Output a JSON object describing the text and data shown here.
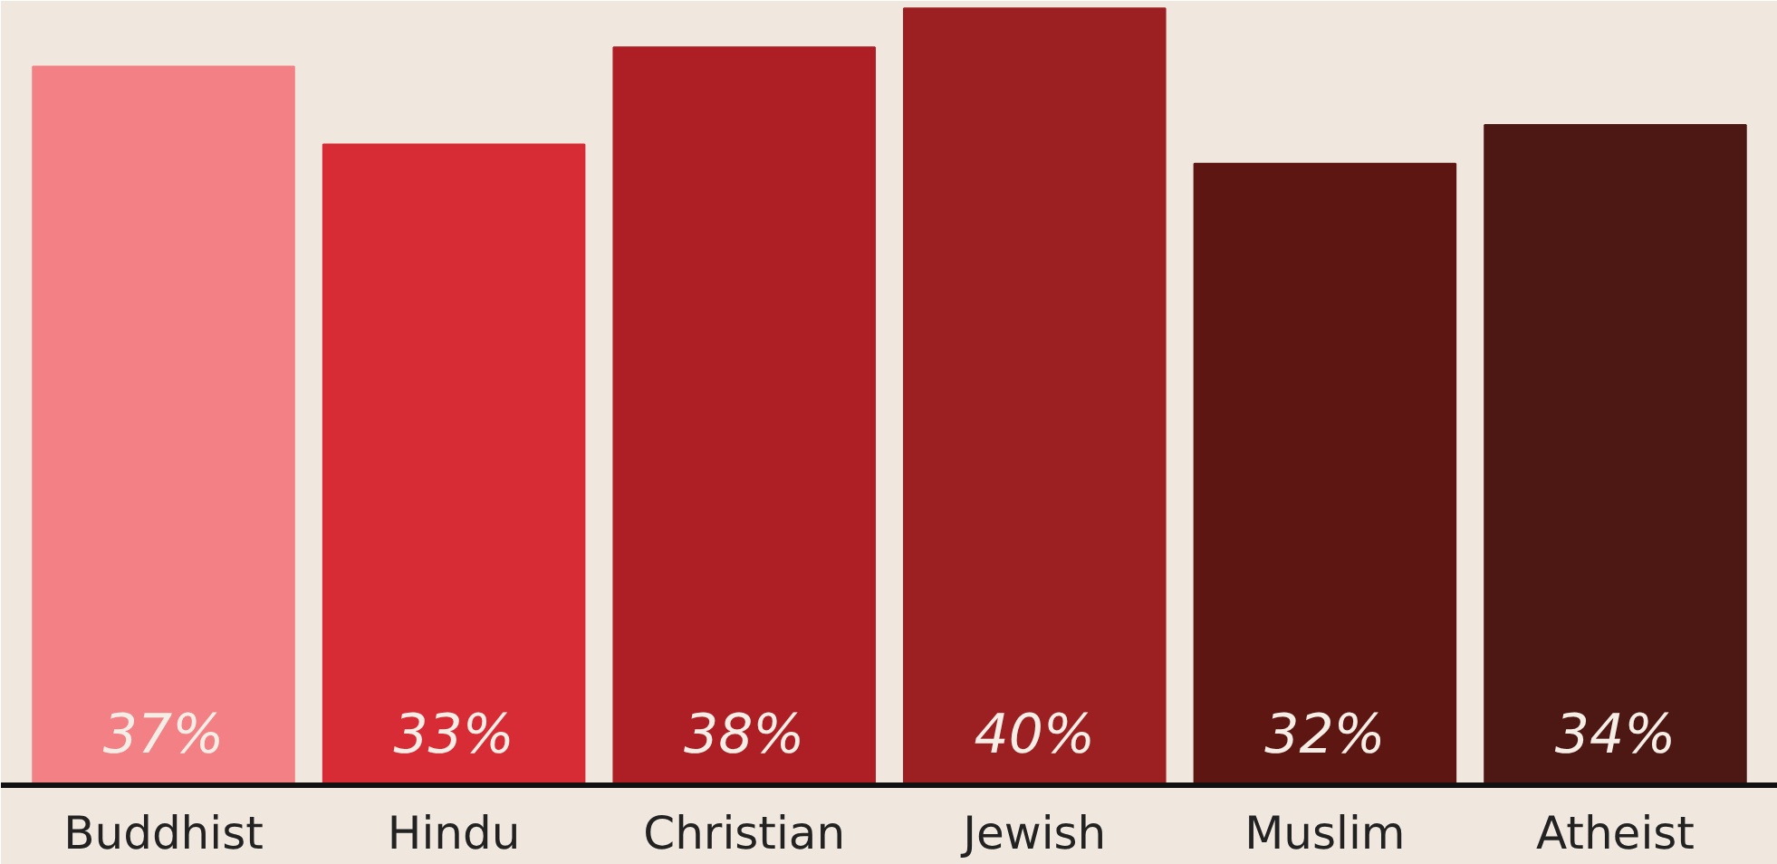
{
  "chart_data": {
    "type": "bar",
    "categories": [
      "Buddhist",
      "Hindu",
      "Christian",
      "Jewish",
      "Muslim",
      "Atheist"
    ],
    "values": [
      37,
      33,
      38,
      40,
      32,
      34
    ],
    "value_labels": [
      "37%",
      "33%",
      "38%",
      "40%",
      "32%",
      "34%"
    ],
    "colors": [
      "#f28085",
      "#d72b35",
      "#ae1e25",
      "#9c1f22",
      "#5e1612",
      "#4d1713"
    ],
    "grid": false
  }
}
